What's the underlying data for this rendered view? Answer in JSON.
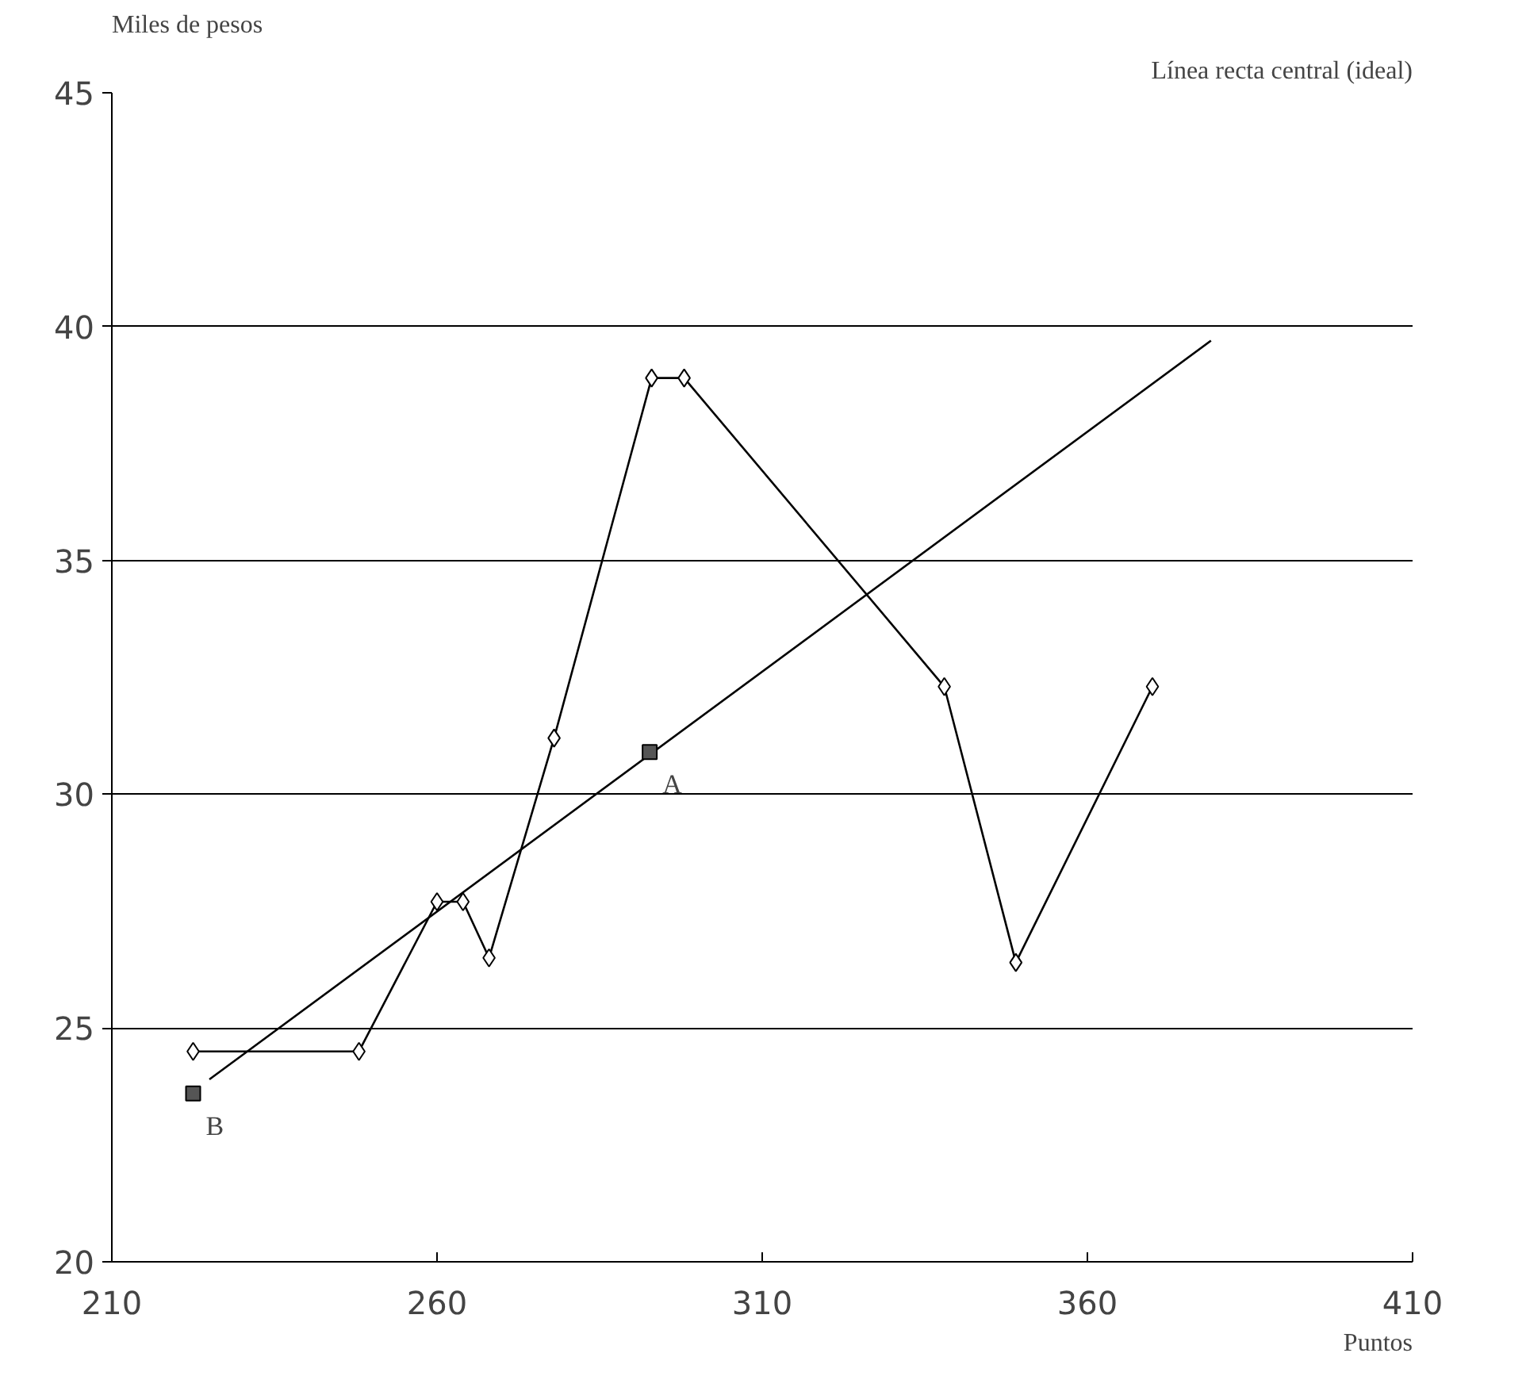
{
  "chart_data": {
    "type": "line",
    "xlabel": "Puntos",
    "ylabel": "Miles de pesos",
    "annotations": [
      "Línea recta central (ideal)",
      {
        "text": "A",
        "x": 292.7,
        "y": 30.9
      },
      {
        "text": "B",
        "x": 222.5,
        "y": 23.6
      }
    ],
    "xlim": [
      210,
      410
    ],
    "ylim": [
      20,
      45
    ],
    "xticks": [
      210,
      260,
      310,
      360,
      410
    ],
    "yticks": [
      20,
      25,
      30,
      35,
      40,
      45
    ],
    "grid": "y",
    "marker": "diamond",
    "line_style": "solid",
    "series": [
      {
        "color": "#000000",
        "x": [
          222.5,
          248,
          260,
          264,
          268,
          278,
          293,
          298,
          338,
          349,
          370
        ],
        "values": [
          24.5,
          24.5,
          27.7,
          27.7,
          26.5,
          31.2,
          38.9,
          38.9,
          32.3,
          26.4,
          32.3
        ]
      },
      {
        "type": "line",
        "marker": "none",
        "color": "#000000",
        "x": [
          225,
          379
        ],
        "values": [
          23.9,
          39.7
        ]
      },
      {
        "type": "scatter",
        "marker": "square",
        "color": "#555555",
        "x": [
          222.5,
          292.7
        ],
        "values": [
          23.6,
          30.9
        ]
      }
    ]
  }
}
